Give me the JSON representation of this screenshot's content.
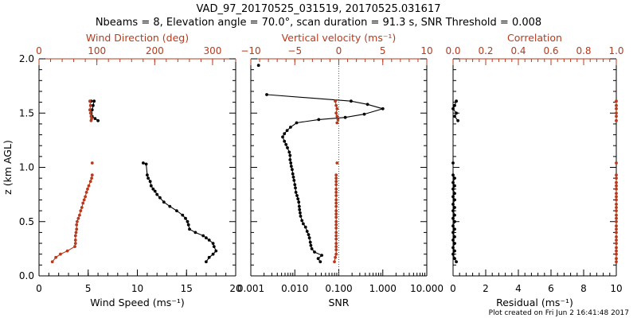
{
  "title": "VAD_97_20170525_031519, 20170525.031617",
  "subtitle": "Nbeams = 8, Elevation angle = 70.0°, scan duration = 91.3 s, SNR Threshold = 0.008",
  "footer": "Plot created on Fri Jun  2 16:41:48 2017",
  "colors": {
    "black": "#000000",
    "red": "#b83a1c"
  },
  "chart_data": [
    {
      "id": "panel-wind",
      "type": "line",
      "ylabel": "z (km AGL)",
      "ylim": [
        0,
        2
      ],
      "yticks": [
        "0.0",
        "0.5",
        "1.0",
        "1.5",
        "2.0"
      ],
      "bottom_axis": {
        "label": "Wind Speed (ms⁻¹)",
        "range": [
          0,
          20
        ],
        "ticks": [
          "0",
          "5",
          "10",
          "15",
          "20"
        ]
      },
      "top_axis": {
        "label": "Wind Direction (deg)",
        "range": [
          0,
          340
        ],
        "ticks": [
          "0",
          "100",
          "200",
          "300"
        ]
      },
      "series": [
        {
          "name": "Wind Speed",
          "axis": "bottom",
          "color": "black",
          "segments": [
            [
              [
                5.3,
                1.61
              ],
              [
                5.6,
                1.61
              ],
              [
                5.5,
                1.57
              ],
              [
                5.4,
                1.53
              ],
              [
                5.3,
                1.5
              ],
              [
                5.4,
                1.47
              ],
              [
                5.7,
                1.45
              ],
              [
                6.0,
                1.43
              ]
            ],
            [
              [
                10.6,
                1.04
              ],
              [
                10.9,
                1.03
              ],
              [
                11.0,
                0.93
              ],
              [
                11.1,
                0.9
              ],
              [
                11.3,
                0.87
              ],
              [
                11.4,
                0.83
              ],
              [
                11.6,
                0.8
              ],
              [
                11.8,
                0.78
              ],
              [
                12.0,
                0.75
              ],
              [
                12.3,
                0.72
              ],
              [
                12.7,
                0.68
              ],
              [
                13.3,
                0.64
              ],
              [
                14.0,
                0.6
              ],
              [
                14.6,
                0.56
              ],
              [
                14.9,
                0.53
              ],
              [
                15.1,
                0.5
              ],
              [
                15.2,
                0.47
              ],
              [
                15.3,
                0.43
              ],
              [
                15.9,
                0.4
              ],
              [
                16.7,
                0.37
              ],
              [
                17.0,
                0.35
              ],
              [
                17.3,
                0.33
              ],
              [
                17.7,
                0.3
              ],
              [
                17.8,
                0.27
              ],
              [
                18.0,
                0.23
              ],
              [
                17.7,
                0.2
              ],
              [
                17.3,
                0.17
              ],
              [
                17.0,
                0.13
              ]
            ]
          ]
        },
        {
          "name": "Wind Direction",
          "axis": "top",
          "color": "red",
          "segments": [
            [
              [
                88,
                1.61
              ],
              [
                89,
                1.57
              ],
              [
                88,
                1.53
              ],
              [
                89,
                1.5
              ],
              [
                90,
                1.47
              ],
              [
                91,
                1.45
              ],
              [
                90,
                1.43
              ]
            ],
            [
              [
                92,
                1.04
              ]
            ],
            [
              [
                92,
                0.93
              ],
              [
                91,
                0.9
              ],
              [
                89,
                0.87
              ],
              [
                86,
                0.83
              ],
              [
                84,
                0.8
              ],
              [
                82,
                0.77
              ],
              [
                80,
                0.73
              ],
              [
                78,
                0.7
              ],
              [
                76,
                0.67
              ],
              [
                74,
                0.63
              ],
              [
                72,
                0.6
              ],
              [
                70,
                0.56
              ],
              [
                68,
                0.53
              ],
              [
                66,
                0.5
              ],
              [
                65,
                0.47
              ],
              [
                65,
                0.43
              ],
              [
                64,
                0.4
              ],
              [
                63,
                0.37
              ],
              [
                63,
                0.33
              ],
              [
                63,
                0.3
              ],
              [
                62,
                0.27
              ],
              [
                49,
                0.23
              ],
              [
                37,
                0.2
              ],
              [
                29,
                0.17
              ],
              [
                23,
                0.13
              ]
            ]
          ]
        }
      ]
    },
    {
      "id": "panel-snr",
      "type": "line",
      "ylim": [
        0,
        2
      ],
      "bottom_axis": {
        "label": "SNR",
        "scale": "log",
        "range": [
          0.001,
          10
        ],
        "ticks": [
          "0.001",
          "0.010",
          "0.100",
          "1.000",
          "10.000"
        ]
      },
      "top_axis": {
        "label": "Vertical velocity (ms⁻¹)",
        "range": [
          -10,
          10
        ],
        "ticks": [
          "−10",
          "−5",
          "0",
          "5",
          "10"
        ]
      },
      "reference_line": {
        "axis": "top",
        "value": 0,
        "style": "dotted",
        "color": "red"
      },
      "series": [
        {
          "name": "SNR",
          "axis": "bottom",
          "color": "black",
          "segments": [
            [
              [
                0.0015,
                1.94
              ]
            ],
            [
              [
                0.0023,
                1.67
              ],
              [
                0.19,
                1.61
              ],
              [
                0.45,
                1.58
              ],
              [
                1.0,
                1.54
              ],
              [
                0.38,
                1.49
              ],
              [
                0.14,
                1.46
              ],
              [
                0.035,
                1.44
              ],
              [
                0.011,
                1.41
              ],
              [
                0.008,
                1.37
              ],
              [
                0.0067,
                1.34
              ],
              [
                0.0058,
                1.31
              ],
              [
                0.0053,
                1.28
              ],
              [
                0.0058,
                1.24
              ],
              [
                0.0063,
                1.21
              ],
              [
                0.0068,
                1.18
              ],
              [
                0.0075,
                1.14
              ],
              [
                0.0078,
                1.11
              ],
              [
                0.0078,
                1.07
              ],
              [
                0.0081,
                1.04
              ],
              [
                0.0083,
                1.01
              ],
              [
                0.0087,
                0.98
              ],
              [
                0.009,
                0.94
              ],
              [
                0.0093,
                0.91
              ],
              [
                0.0096,
                0.88
              ],
              [
                0.01,
                0.84
              ],
              [
                0.0103,
                0.81
              ],
              [
                0.0106,
                0.77
              ],
              [
                0.0112,
                0.74
              ],
              [
                0.0118,
                0.71
              ],
              [
                0.0123,
                0.68
              ],
              [
                0.0126,
                0.64
              ],
              [
                0.0128,
                0.61
              ],
              [
                0.0132,
                0.58
              ],
              [
                0.0135,
                0.55
              ],
              [
                0.0145,
                0.51
              ],
              [
                0.0156,
                0.48
              ],
              [
                0.0175,
                0.45
              ],
              [
                0.019,
                0.41
              ],
              [
                0.0205,
                0.38
              ],
              [
                0.0215,
                0.35
              ],
              [
                0.0225,
                0.31
              ],
              [
                0.0232,
                0.28
              ],
              [
                0.0243,
                0.25
              ],
              [
                0.028,
                0.22
              ],
              [
                0.041,
                0.19
              ],
              [
                0.034,
                0.16
              ],
              [
                0.038,
                0.13
              ]
            ]
          ]
        },
        {
          "name": "Vertical velocity",
          "axis": "top",
          "color": "red",
          "segments": [
            [
              [
                -0.4,
                1.61
              ],
              [
                -0.3,
                1.57
              ],
              [
                -0.2,
                1.54
              ],
              [
                -0.3,
                1.5
              ],
              [
                -0.2,
                1.47
              ],
              [
                -0.1,
                1.44
              ],
              [
                -0.2,
                1.41
              ]
            ],
            [
              [
                -0.2,
                1.04
              ]
            ],
            [
              [
                -0.3,
                0.93
              ],
              [
                -0.3,
                0.9
              ],
              [
                -0.3,
                0.87
              ],
              [
                -0.3,
                0.84
              ],
              [
                -0.3,
                0.8
              ],
              [
                -0.3,
                0.77
              ],
              [
                -0.3,
                0.74
              ],
              [
                -0.3,
                0.7
              ],
              [
                -0.3,
                0.67
              ],
              [
                -0.3,
                0.64
              ],
              [
                -0.3,
                0.6
              ],
              [
                -0.3,
                0.57
              ],
              [
                -0.3,
                0.54
              ],
              [
                -0.3,
                0.5
              ],
              [
                -0.3,
                0.47
              ],
              [
                -0.3,
                0.44
              ],
              [
                -0.3,
                0.4
              ],
              [
                -0.3,
                0.37
              ],
              [
                -0.3,
                0.34
              ],
              [
                -0.3,
                0.3
              ],
              [
                -0.3,
                0.27
              ],
              [
                -0.3,
                0.24
              ],
              [
                -0.3,
                0.2
              ],
              [
                -0.4,
                0.17
              ],
              [
                -0.5,
                0.13
              ]
            ]
          ]
        }
      ]
    },
    {
      "id": "panel-corr",
      "type": "line",
      "ylim": [
        0,
        2
      ],
      "bottom_axis": {
        "label": "Residual (ms⁻¹)",
        "range": [
          0,
          10
        ],
        "ticks": [
          "0",
          "2",
          "4",
          "6",
          "8",
          "10"
        ]
      },
      "top_axis": {
        "label": "Correlation",
        "range": [
          0,
          1
        ],
        "ticks": [
          "0.0",
          "0.2",
          "0.4",
          "0.6",
          "0.8",
          "1.0"
        ]
      },
      "series": [
        {
          "name": "Residual",
          "axis": "bottom",
          "color": "black",
          "segments": [
            [
              [
                0.2,
                1.61
              ],
              [
                0.1,
                1.57
              ],
              [
                0.0,
                1.54
              ],
              [
                0.2,
                1.5
              ],
              [
                0.1,
                1.47
              ],
              [
                0.3,
                1.43
              ]
            ],
            [
              [
                0.0,
                1.04
              ]
            ],
            [
              [
                0.0,
                0.93
              ],
              [
                0.1,
                0.9
              ],
              [
                0.0,
                0.86
              ],
              [
                0.1,
                0.83
              ],
              [
                0.0,
                0.8
              ],
              [
                0.1,
                0.76
              ],
              [
                0.0,
                0.73
              ],
              [
                0.1,
                0.7
              ],
              [
                0.0,
                0.66
              ],
              [
                0.1,
                0.63
              ],
              [
                0.0,
                0.6
              ],
              [
                0.1,
                0.56
              ],
              [
                0.0,
                0.53
              ],
              [
                0.1,
                0.5
              ],
              [
                0.0,
                0.46
              ],
              [
                0.1,
                0.43
              ],
              [
                0.0,
                0.4
              ],
              [
                0.1,
                0.36
              ],
              [
                0.0,
                0.33
              ],
              [
                0.1,
                0.3
              ],
              [
                0.0,
                0.26
              ],
              [
                0.1,
                0.23
              ],
              [
                0.0,
                0.2
              ],
              [
                0.1,
                0.16
              ],
              [
                0.2,
                0.13
              ]
            ]
          ]
        },
        {
          "name": "Correlation",
          "axis": "top",
          "color": "red",
          "segments": [
            [
              [
                1.0,
                1.61
              ],
              [
                1.0,
                1.57
              ],
              [
                1.0,
                1.54
              ],
              [
                1.0,
                1.5
              ],
              [
                1.0,
                1.47
              ],
              [
                1.0,
                1.43
              ]
            ],
            [
              [
                1.0,
                1.04
              ]
            ],
            [
              [
                1.0,
                0.93
              ],
              [
                1.0,
                0.9
              ],
              [
                1.0,
                0.86
              ],
              [
                1.0,
                0.83
              ],
              [
                1.0,
                0.8
              ],
              [
                1.0,
                0.76
              ],
              [
                1.0,
                0.73
              ],
              [
                1.0,
                0.7
              ],
              [
                1.0,
                0.66
              ],
              [
                1.0,
                0.63
              ],
              [
                1.0,
                0.6
              ],
              [
                1.0,
                0.56
              ],
              [
                1.0,
                0.53
              ],
              [
                1.0,
                0.5
              ],
              [
                1.0,
                0.46
              ],
              [
                1.0,
                0.43
              ],
              [
                1.0,
                0.4
              ],
              [
                1.0,
                0.36
              ],
              [
                1.0,
                0.33
              ],
              [
                1.0,
                0.3
              ],
              [
                1.0,
                0.26
              ],
              [
                1.0,
                0.23
              ],
              [
                1.0,
                0.2
              ],
              [
                1.0,
                0.16
              ],
              [
                1.0,
                0.13
              ]
            ]
          ]
        }
      ]
    }
  ]
}
